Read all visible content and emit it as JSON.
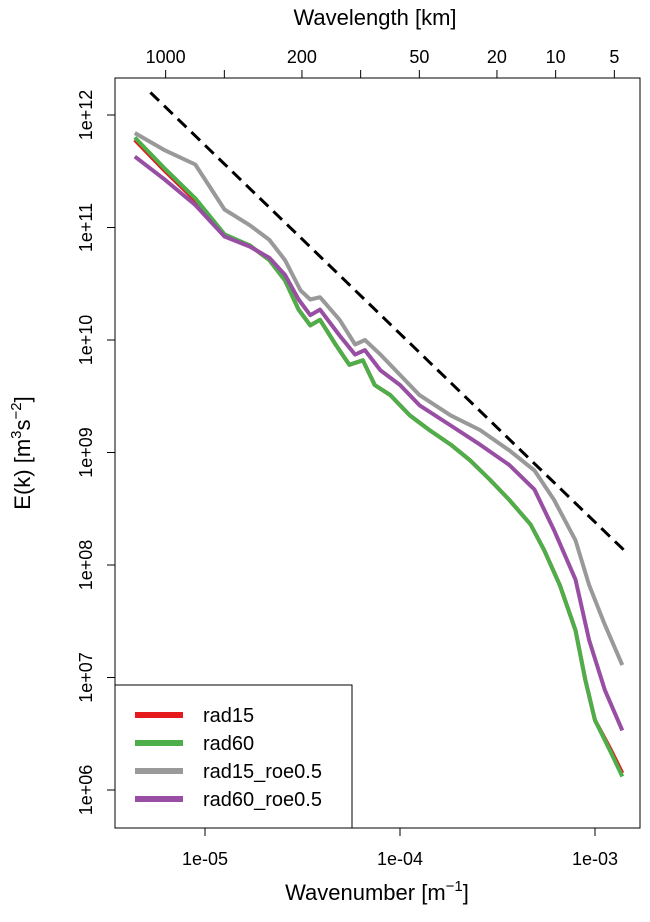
{
  "chart_data": {
    "type": "line",
    "xscale": "log",
    "yscale": "log",
    "xlabel": {
      "text": "Wavenumber [m",
      "sup": "−1",
      "end": "]"
    },
    "ylabel": {
      "text": "E(k) [m",
      "sup1": "3",
      "mid": "s",
      "sup2": "−2",
      "end": "]"
    },
    "top_axis_label": "Wavelength [km]",
    "xlim": [
      3.5e-06,
      0.0017
    ],
    "ylim": [
      400000.0,
      2500000000000.0
    ],
    "x_ticks": [
      {
        "value": 1e-05,
        "label": "1e-05"
      },
      {
        "value": 0.0001,
        "label": "1e-04"
      },
      {
        "value": 0.001,
        "label": "1e-03"
      }
    ],
    "y_ticks": [
      {
        "value": 1000000000000.0,
        "label": "1e+12"
      },
      {
        "value": 100000000000.0,
        "label": "1e+11"
      },
      {
        "value": 10000000000.0,
        "label": "1e+10"
      },
      {
        "value": 1000000000.0,
        "label": "1e+09"
      },
      {
        "value": 100000000.0,
        "label": "1e+08"
      },
      {
        "value": 10000000.0,
        "label": "1e+07"
      },
      {
        "value": 1000000.0,
        "label": "1e+06"
      }
    ],
    "top_ticks_km": [
      {
        "km": 1000,
        "label": "1000"
      },
      {
        "km": 500,
        "label": ""
      },
      {
        "km": 200,
        "label": "200"
      },
      {
        "km": 100,
        "label": ""
      },
      {
        "km": 50,
        "label": "50"
      },
      {
        "km": 20,
        "label": "20"
      },
      {
        "km": 10,
        "label": "10"
      },
      {
        "km": 5,
        "label": "5"
      }
    ],
    "reference_line": {
      "style": "dashed",
      "color": "#000000",
      "slope": "-5/3",
      "log_points": [
        [
          -5.28,
          12.2
        ],
        [
          -2.85,
          8.13
        ]
      ]
    },
    "legend_position": "bottom-left",
    "series": [
      {
        "name": "rad15",
        "color": "#e41a1c",
        "log_points": [
          [
            -5.36,
            11.78
          ],
          [
            -5.21,
            11.51
          ],
          [
            -5.05,
            11.24
          ],
          [
            -4.9,
            10.93
          ],
          [
            -4.77,
            10.84
          ],
          [
            -4.67,
            10.71
          ],
          [
            -4.59,
            10.53
          ],
          [
            -4.52,
            10.27
          ],
          [
            -4.46,
            10.13
          ],
          [
            -4.41,
            10.18
          ],
          [
            -4.33,
            9.96
          ],
          [
            -4.26,
            9.78
          ],
          [
            -4.19,
            9.82
          ],
          [
            -4.13,
            9.6
          ],
          [
            -4.05,
            9.51
          ],
          [
            -3.95,
            9.33
          ],
          [
            -3.85,
            9.2
          ],
          [
            -3.74,
            9.07
          ],
          [
            -3.64,
            8.93
          ],
          [
            -3.54,
            8.76
          ],
          [
            -3.44,
            8.58
          ],
          [
            -3.33,
            8.36
          ],
          [
            -3.26,
            8.13
          ],
          [
            -3.18,
            7.82
          ],
          [
            -3.1,
            7.42
          ],
          [
            -3.05,
            6.98
          ],
          [
            -3.0,
            6.62
          ],
          [
            -2.92,
            6.36
          ],
          [
            -2.86,
            6.15
          ]
        ]
      },
      {
        "name": "rad60",
        "color": "#4daf4a",
        "log_points": [
          [
            -5.36,
            11.8
          ],
          [
            -5.21,
            11.53
          ],
          [
            -5.05,
            11.26
          ],
          [
            -4.9,
            10.94
          ],
          [
            -4.77,
            10.84
          ],
          [
            -4.67,
            10.71
          ],
          [
            -4.59,
            10.53
          ],
          [
            -4.52,
            10.27
          ],
          [
            -4.46,
            10.13
          ],
          [
            -4.41,
            10.18
          ],
          [
            -4.33,
            9.96
          ],
          [
            -4.26,
            9.78
          ],
          [
            -4.19,
            9.82
          ],
          [
            -4.13,
            9.6
          ],
          [
            -4.05,
            9.51
          ],
          [
            -3.95,
            9.33
          ],
          [
            -3.85,
            9.2
          ],
          [
            -3.74,
            9.07
          ],
          [
            -3.64,
            8.93
          ],
          [
            -3.54,
            8.76
          ],
          [
            -3.44,
            8.58
          ],
          [
            -3.33,
            8.36
          ],
          [
            -3.26,
            8.13
          ],
          [
            -3.18,
            7.82
          ],
          [
            -3.1,
            7.42
          ],
          [
            -3.05,
            6.98
          ],
          [
            -3.0,
            6.62
          ],
          [
            -2.92,
            6.34
          ],
          [
            -2.86,
            6.12
          ]
        ]
      },
      {
        "name": "rad15_roe0.5",
        "color": "#999999",
        "log_points": [
          [
            -5.36,
            11.84
          ],
          [
            -5.21,
            11.69
          ],
          [
            -5.05,
            11.56
          ],
          [
            -4.9,
            11.16
          ],
          [
            -4.77,
            11.02
          ],
          [
            -4.67,
            10.89
          ],
          [
            -4.59,
            10.71
          ],
          [
            -4.51,
            10.44
          ],
          [
            -4.46,
            10.36
          ],
          [
            -4.41,
            10.38
          ],
          [
            -4.31,
            10.18
          ],
          [
            -4.23,
            9.96
          ],
          [
            -4.18,
            10.0
          ],
          [
            -4.1,
            9.87
          ],
          [
            -4.0,
            9.69
          ],
          [
            -3.9,
            9.51
          ],
          [
            -3.74,
            9.33
          ],
          [
            -3.59,
            9.2
          ],
          [
            -3.44,
            9.02
          ],
          [
            -3.31,
            8.84
          ],
          [
            -3.21,
            8.58
          ],
          [
            -3.1,
            8.22
          ],
          [
            -3.03,
            7.82
          ],
          [
            -2.95,
            7.47
          ],
          [
            -2.86,
            7.11
          ]
        ]
      },
      {
        "name": "rad60_roe0.5",
        "color": "#984ea3",
        "log_points": [
          [
            -5.36,
            11.63
          ],
          [
            -5.21,
            11.43
          ],
          [
            -5.05,
            11.2
          ],
          [
            -4.9,
            10.92
          ],
          [
            -4.77,
            10.83
          ],
          [
            -4.67,
            10.73
          ],
          [
            -4.59,
            10.58
          ],
          [
            -4.52,
            10.36
          ],
          [
            -4.46,
            10.22
          ],
          [
            -4.41,
            10.27
          ],
          [
            -4.31,
            10.04
          ],
          [
            -4.23,
            9.87
          ],
          [
            -4.18,
            9.91
          ],
          [
            -4.1,
            9.73
          ],
          [
            -4.0,
            9.6
          ],
          [
            -3.9,
            9.42
          ],
          [
            -3.74,
            9.24
          ],
          [
            -3.59,
            9.07
          ],
          [
            -3.44,
            8.89
          ],
          [
            -3.31,
            8.67
          ],
          [
            -3.21,
            8.31
          ],
          [
            -3.1,
            7.87
          ],
          [
            -3.03,
            7.33
          ],
          [
            -2.95,
            6.89
          ],
          [
            -2.86,
            6.53
          ]
        ]
      }
    ]
  }
}
